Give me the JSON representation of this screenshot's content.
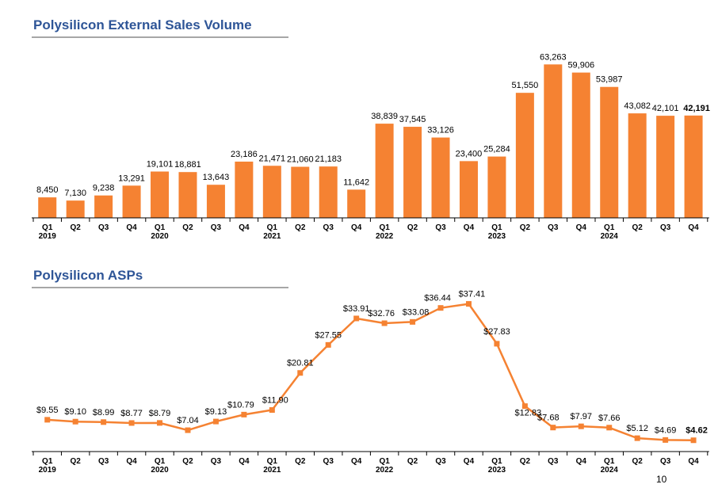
{
  "chart_data": [
    {
      "type": "bar",
      "title": "Polysilicon External Sales Volume",
      "categories": [
        "Q1",
        "Q2",
        "Q3",
        "Q4",
        "Q1",
        "Q2",
        "Q3",
        "Q4",
        "Q1",
        "Q2",
        "Q3",
        "Q4",
        "Q1",
        "Q2",
        "Q3",
        "Q4",
        "Q1",
        "Q2",
        "Q3",
        "Q4",
        "Q1",
        "Q2",
        "Q3",
        "Q4"
      ],
      "years": [
        "2019",
        "",
        "",
        "",
        "2020",
        "",
        "",
        "",
        "2021",
        "",
        "",
        "",
        "2022",
        "",
        "",
        "",
        "2023",
        "",
        "",
        "",
        "2024",
        "",
        "",
        ""
      ],
      "values": [
        8450,
        7130,
        9238,
        13291,
        19101,
        18881,
        13643,
        23186,
        21471,
        21060,
        21183,
        11642,
        38839,
        37545,
        33126,
        23400,
        25284,
        51550,
        63263,
        59906,
        53987,
        43082,
        42101,
        42191
      ],
      "labels": [
        "8,450",
        "7,130",
        "9,238",
        "13,291",
        "19,101",
        "18,881",
        "13,643",
        "23,186",
        "21,471",
        "21,060",
        "21,183",
        "11,642",
        "38,839",
        "37,545",
        "33,126",
        "23,400",
        "25,284",
        "51,550",
        "63,263",
        "59,906",
        "53,987",
        "43,082",
        "42,101",
        "42,191"
      ],
      "ylim": [
        0,
        65000
      ],
      "color": "#f58232",
      "highlight_last": true
    },
    {
      "type": "line",
      "title": "Polysilicon ASPs",
      "categories": [
        "Q1",
        "Q2",
        "Q3",
        "Q4",
        "Q1",
        "Q2",
        "Q3",
        "Q4",
        "Q1",
        "Q2",
        "Q3",
        "Q4",
        "Q1",
        "Q2",
        "Q3",
        "Q4",
        "Q1",
        "Q2",
        "Q3",
        "Q4",
        "Q1",
        "Q2",
        "Q3",
        "Q4"
      ],
      "years": [
        "2019",
        "",
        "",
        "",
        "2020",
        "",
        "",
        "",
        "2021",
        "",
        "",
        "",
        "2022",
        "",
        "",
        "",
        "2023",
        "",
        "",
        "",
        "2024",
        "",
        "",
        ""
      ],
      "values": [
        9.55,
        9.1,
        8.99,
        8.77,
        8.79,
        7.04,
        9.13,
        10.79,
        11.9,
        20.81,
        27.55,
        33.91,
        32.76,
        33.08,
        36.44,
        37.41,
        27.83,
        12.83,
        7.68,
        7.97,
        7.66,
        5.12,
        4.69,
        4.62
      ],
      "labels": [
        "$9.55",
        "$9.10",
        "$8.99",
        "$8.77",
        "$8.79",
        "$7.04",
        "$9.13",
        "$10.79",
        "$11.90",
        "$20.81",
        "$27.55",
        "$33.91",
        "$32.76",
        "$33.08",
        "$36.44",
        "$37.41",
        "$27.83",
        "$12.83",
        "$7.68",
        "$7.97",
        "$7.66",
        "$5.12",
        "$4.69",
        "$4.62"
      ],
      "ylim": [
        0,
        40
      ],
      "color": "#f58232",
      "highlight_last": true
    }
  ],
  "page_number": "10"
}
